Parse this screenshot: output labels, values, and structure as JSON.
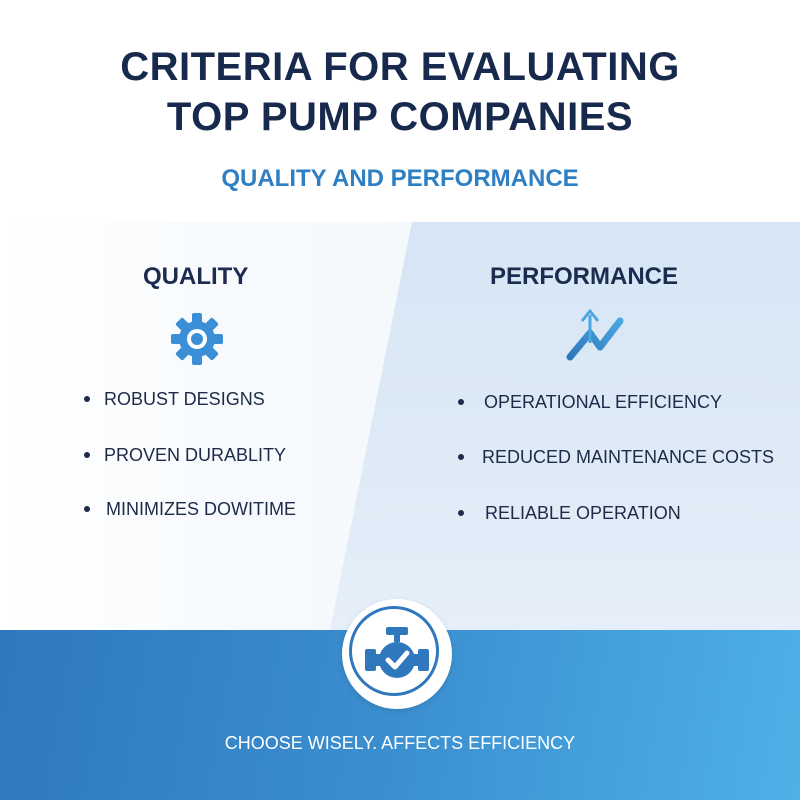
{
  "header": {
    "title_line1": "CRITERIA FOR EVALUATING",
    "title_line2": "TOP PUMP COMPANIES",
    "subtitle": "QUALITY AND PERFORMANCE"
  },
  "quality": {
    "heading": "QUALITY",
    "icon": "gear-icon",
    "items": [
      "ROBUST DESIGNS",
      "PROVEN DURABLITY",
      "MINIMIZES DOWITIME"
    ]
  },
  "performance": {
    "heading": "PERFORMANCE",
    "icon": "trend-up-chart-icon",
    "items": [
      "OPERATIONAL EFFICIENCY",
      "REDUCED MAINTENANCE COSTS",
      "RELIABLE OPERATION"
    ]
  },
  "footer": {
    "icon": "pump-check-icon",
    "tagline": "CHOOSE WISELY. AFFECTS EFFICIENCY"
  },
  "colors": {
    "title": "#17294d",
    "accent": "#2f7fc3",
    "footer_start": "#2f78bd",
    "footer_end": "#4eb1e6"
  }
}
